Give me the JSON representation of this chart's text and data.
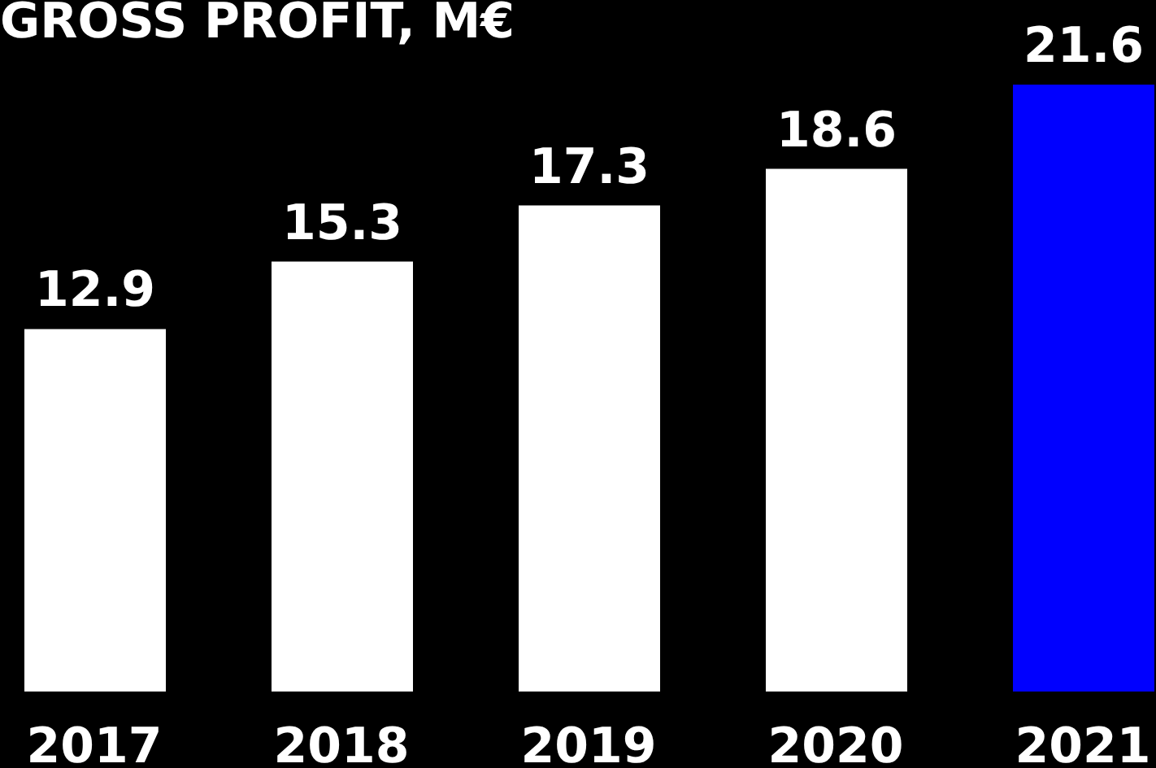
{
  "chart_data": {
    "type": "bar",
    "title": "GROSS PROFIT, M€",
    "categories": [
      "2017",
      "2018",
      "2019",
      "2020",
      "2021"
    ],
    "values": [
      12.9,
      15.3,
      17.3,
      18.6,
      21.6
    ],
    "colors": [
      "#ffffff",
      "#ffffff",
      "#ffffff",
      "#ffffff",
      "#0000ff"
    ],
    "data_labels": true
  }
}
